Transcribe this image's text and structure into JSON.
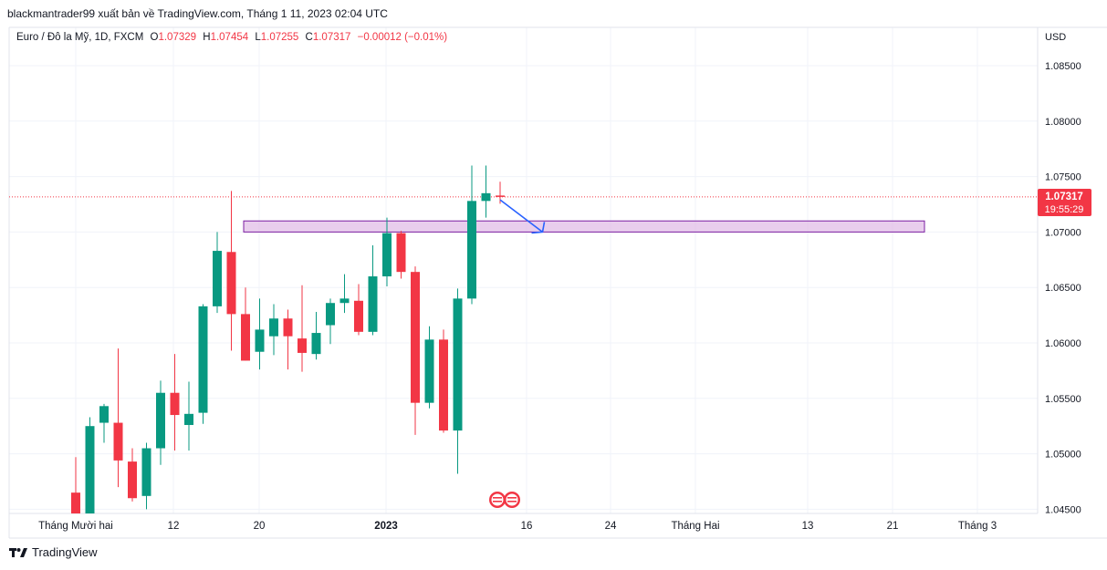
{
  "header": {
    "publisher_line": "blackmantrader99 xuất bản về TradingView.com, Tháng 1 11, 2023 02:04 UTC"
  },
  "legend": {
    "symbol": "Euro / Đô la Mỹ, 1D, FXCM",
    "o_key": "O",
    "o": "1.07329",
    "h_key": "H",
    "h": "1.07454",
    "l_key": "L",
    "l": "1.07255",
    "c_key": "C",
    "c": "1.07317",
    "change": "−0.00012 (−0.01%)"
  },
  "price_scale": {
    "currency": "USD",
    "ticks": [
      "1.08500",
      "1.08000",
      "1.07500",
      "1.07000",
      "1.06500",
      "1.06000",
      "1.05500",
      "1.05000",
      "1.04500"
    ],
    "last_price": "1.07317",
    "countdown": "19:55:29"
  },
  "time_axis": {
    "labels": [
      "Tháng Mười hai",
      "12",
      "20",
      "2023",
      "16",
      "24",
      "Tháng Hai",
      "13",
      "21",
      "Tháng 3"
    ]
  },
  "footer": {
    "brand": "TradingView"
  },
  "colors": {
    "up": "#089981",
    "down": "#f23645",
    "zone_fill": "#e1bee7",
    "zone_border": "#7b1fa2",
    "arrow": "#2962ff",
    "grid": "#f0f3fa"
  },
  "chart_data": {
    "type": "candlestick",
    "symbol": "EURUSD",
    "timeframe": "1D",
    "ylim": [
      1.0445,
      1.0895
    ],
    "candles": [
      {
        "o": 1.0465,
        "h": 1.0497,
        "l": 1.0445,
        "c": 1.0445
      },
      {
        "o": 1.0445,
        "h": 1.0533,
        "l": 1.0445,
        "c": 1.0525
      },
      {
        "o": 1.0528,
        "h": 1.0545,
        "l": 1.051,
        "c": 1.0543
      },
      {
        "o": 1.0528,
        "h": 1.0595,
        "l": 1.047,
        "c": 1.0494
      },
      {
        "o": 1.0493,
        "h": 1.0505,
        "l": 1.0457,
        "c": 1.046
      },
      {
        "o": 1.0462,
        "h": 1.051,
        "l": 1.045,
        "c": 1.0505
      },
      {
        "o": 1.0505,
        "h": 1.0566,
        "l": 1.049,
        "c": 1.0555
      },
      {
        "o": 1.0555,
        "h": 1.059,
        "l": 1.0503,
        "c": 1.0535
      },
      {
        "o": 1.0526,
        "h": 1.0565,
        "l": 1.0503,
        "c": 1.0536
      },
      {
        "o": 1.0537,
        "h": 1.0635,
        "l": 1.0527,
        "c": 1.0633
      },
      {
        "o": 1.0633,
        "h": 1.07,
        "l": 1.0627,
        "c": 1.0683
      },
      {
        "o": 1.0682,
        "h": 1.0737,
        "l": 1.0593,
        "c": 1.0626
      },
      {
        "o": 1.0626,
        "h": 1.065,
        "l": 1.0584,
        "c": 1.0584
      },
      {
        "o": 1.0592,
        "h": 1.064,
        "l": 1.0576,
        "c": 1.0612
      },
      {
        "o": 1.0606,
        "h": 1.0635,
        "l": 1.0589,
        "c": 1.0622
      },
      {
        "o": 1.0622,
        "h": 1.063,
        "l": 1.0576,
        "c": 1.0606
      },
      {
        "o": 1.0604,
        "h": 1.0652,
        "l": 1.0574,
        "c": 1.0591
      },
      {
        "o": 1.059,
        "h": 1.0628,
        "l": 1.0585,
        "c": 1.0609
      },
      {
        "o": 1.0616,
        "h": 1.064,
        "l": 1.0599,
        "c": 1.0636
      },
      {
        "o": 1.0636,
        "h": 1.0662,
        "l": 1.0627,
        "c": 1.064
      },
      {
        "o": 1.0638,
        "h": 1.0653,
        "l": 1.0607,
        "c": 1.061
      },
      {
        "o": 1.061,
        "h": 1.0688,
        "l": 1.0607,
        "c": 1.066
      },
      {
        "o": 1.066,
        "h": 1.0713,
        "l": 1.0651,
        "c": 1.0699
      },
      {
        "o": 1.0699,
        "h": 1.0701,
        "l": 1.0658,
        "c": 1.0664
      },
      {
        "o": 1.0664,
        "h": 1.0669,
        "l": 1.0517,
        "c": 1.0546
      },
      {
        "o": 1.0546,
        "h": 1.0615,
        "l": 1.0541,
        "c": 1.0603
      },
      {
        "o": 1.0603,
        "h": 1.0612,
        "l": 1.0519,
        "c": 1.0521
      },
      {
        "o": 1.0521,
        "h": 1.0649,
        "l": 1.0482,
        "c": 1.064
      },
      {
        "o": 1.064,
        "h": 1.076,
        "l": 1.0635,
        "c": 1.0728
      },
      {
        "o": 1.0728,
        "h": 1.076,
        "l": 1.0713,
        "c": 1.0735
      },
      {
        "o": 1.07329,
        "h": 1.07454,
        "l": 1.07255,
        "c": 1.07317
      }
    ],
    "last_price": 1.07317,
    "annotations": {
      "zone": {
        "start_index": 12,
        "end_index": 60,
        "top": 1.071,
        "bottom": 1.07
      },
      "arrow": {
        "from_index": 30,
        "from_price": 1.0729,
        "to_index": 33,
        "to_price": 1.07
      }
    }
  }
}
